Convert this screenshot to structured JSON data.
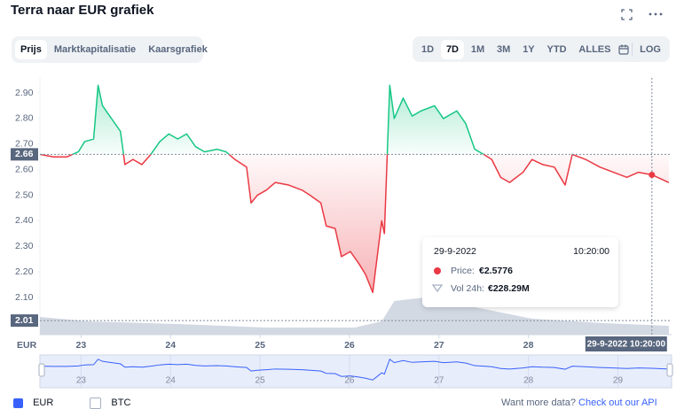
{
  "header": {
    "title": "Terra naar EUR grafiek",
    "tabs": [
      "Prijs",
      "Marktkapitalisatie",
      "Kaarsgrafiek"
    ],
    "ranges": [
      "1D",
      "7D",
      "1M",
      "3M",
      "1Y",
      "YTD",
      "ALLES"
    ],
    "log": "LOG"
  },
  "chart_data": {
    "type": "line",
    "yaxis_label": "EUR",
    "xlim": [
      22.54,
      29.6
    ],
    "xticks": [
      23,
      24,
      25,
      26,
      27,
      28
    ],
    "ylim": [
      1.955,
      2.959
    ],
    "yticks": [
      {
        "value": 2.1,
        "label": "2.10"
      },
      {
        "value": 2.2,
        "label": "2.20"
      },
      {
        "value": 2.3,
        "label": "2.30"
      },
      {
        "value": 2.4,
        "label": "2.40"
      },
      {
        "value": 2.5,
        "label": "2.50"
      },
      {
        "value": 2.6,
        "label": "2.60"
      },
      {
        "value": 2.7,
        "label": "2.70"
      },
      {
        "value": 2.8,
        "label": "2.80"
      },
      {
        "value": 2.9,
        "label": "2.90"
      }
    ],
    "y2lim": [
      0,
      6600
    ],
    "baseline": 2.66,
    "marker_line": 2.01,
    "series": [
      {
        "color": "#16c784",
        "down_color": "#ea3943",
        "x": [
          22.54,
          22.69,
          22.84,
          22.97,
          23.04,
          23.14,
          23.19,
          23.24,
          23.34,
          23.44,
          23.49,
          23.58,
          23.68,
          23.78,
          23.88,
          23.98,
          24.08,
          24.18,
          24.28,
          24.38,
          24.52,
          24.62,
          24.72,
          24.85,
          24.9,
          24.97,
          25.07,
          25.17,
          25.32,
          25.47,
          25.56,
          25.68,
          25.74,
          25.84,
          25.91,
          26.01,
          26.11,
          26.18,
          26.26,
          26.31,
          26.36,
          26.39,
          26.42,
          26.45,
          26.5,
          26.6,
          26.7,
          26.8,
          26.95,
          27.05,
          27.2,
          27.3,
          27.4,
          27.5,
          27.59,
          27.69,
          27.79,
          27.94,
          28.04,
          28.16,
          28.29,
          28.41,
          28.49,
          28.64,
          28.8,
          28.95,
          29.1,
          29.23,
          29.38,
          29.57
        ],
        "values": [
          2.66,
          2.65,
          2.65,
          2.67,
          2.71,
          2.72,
          2.93,
          2.85,
          2.8,
          2.75,
          2.62,
          2.64,
          2.62,
          2.66,
          2.71,
          2.74,
          2.72,
          2.74,
          2.69,
          2.67,
          2.68,
          2.67,
          2.64,
          2.61,
          2.47,
          2.5,
          2.52,
          2.55,
          2.54,
          2.52,
          2.5,
          2.47,
          2.38,
          2.37,
          2.26,
          2.28,
          2.23,
          2.19,
          2.12,
          2.26,
          2.4,
          2.35,
          2.64,
          2.93,
          2.8,
          2.88,
          2.81,
          2.83,
          2.85,
          2.8,
          2.83,
          2.78,
          2.68,
          2.66,
          2.64,
          2.57,
          2.55,
          2.59,
          2.64,
          2.62,
          2.61,
          2.54,
          2.66,
          2.64,
          2.61,
          2.59,
          2.57,
          2.59,
          2.58,
          2.55
        ]
      },
      {
        "color": "#d3d9e3",
        "axis": "y2",
        "x": [
          22.54,
          23.08,
          24.08,
          25.07,
          26.06,
          26.36,
          26.5,
          26.85,
          27.45,
          28.04,
          28.84,
          29.57
        ],
        "values": [
          456,
          342,
          274,
          182,
          182,
          342,
          866,
          958,
          684,
          410,
          296,
          228
        ]
      }
    ],
    "crosshair": {
      "x": 29.38,
      "label": "29-9-2022 10:20:00"
    },
    "tooltip": {
      "date": "29-9-2022",
      "time": "10:20:00",
      "price_label": "Price:",
      "price": "€2.5776",
      "vol_label": "Vol 24h:",
      "vol": "€228.29M"
    },
    "navigator_ticks": [
      23,
      24,
      25,
      26,
      27,
      28,
      29
    ],
    "currency_toggles": [
      "EUR",
      "BTC"
    ],
    "api_prompt": "Want more data?",
    "api_link": "Check out our API"
  }
}
